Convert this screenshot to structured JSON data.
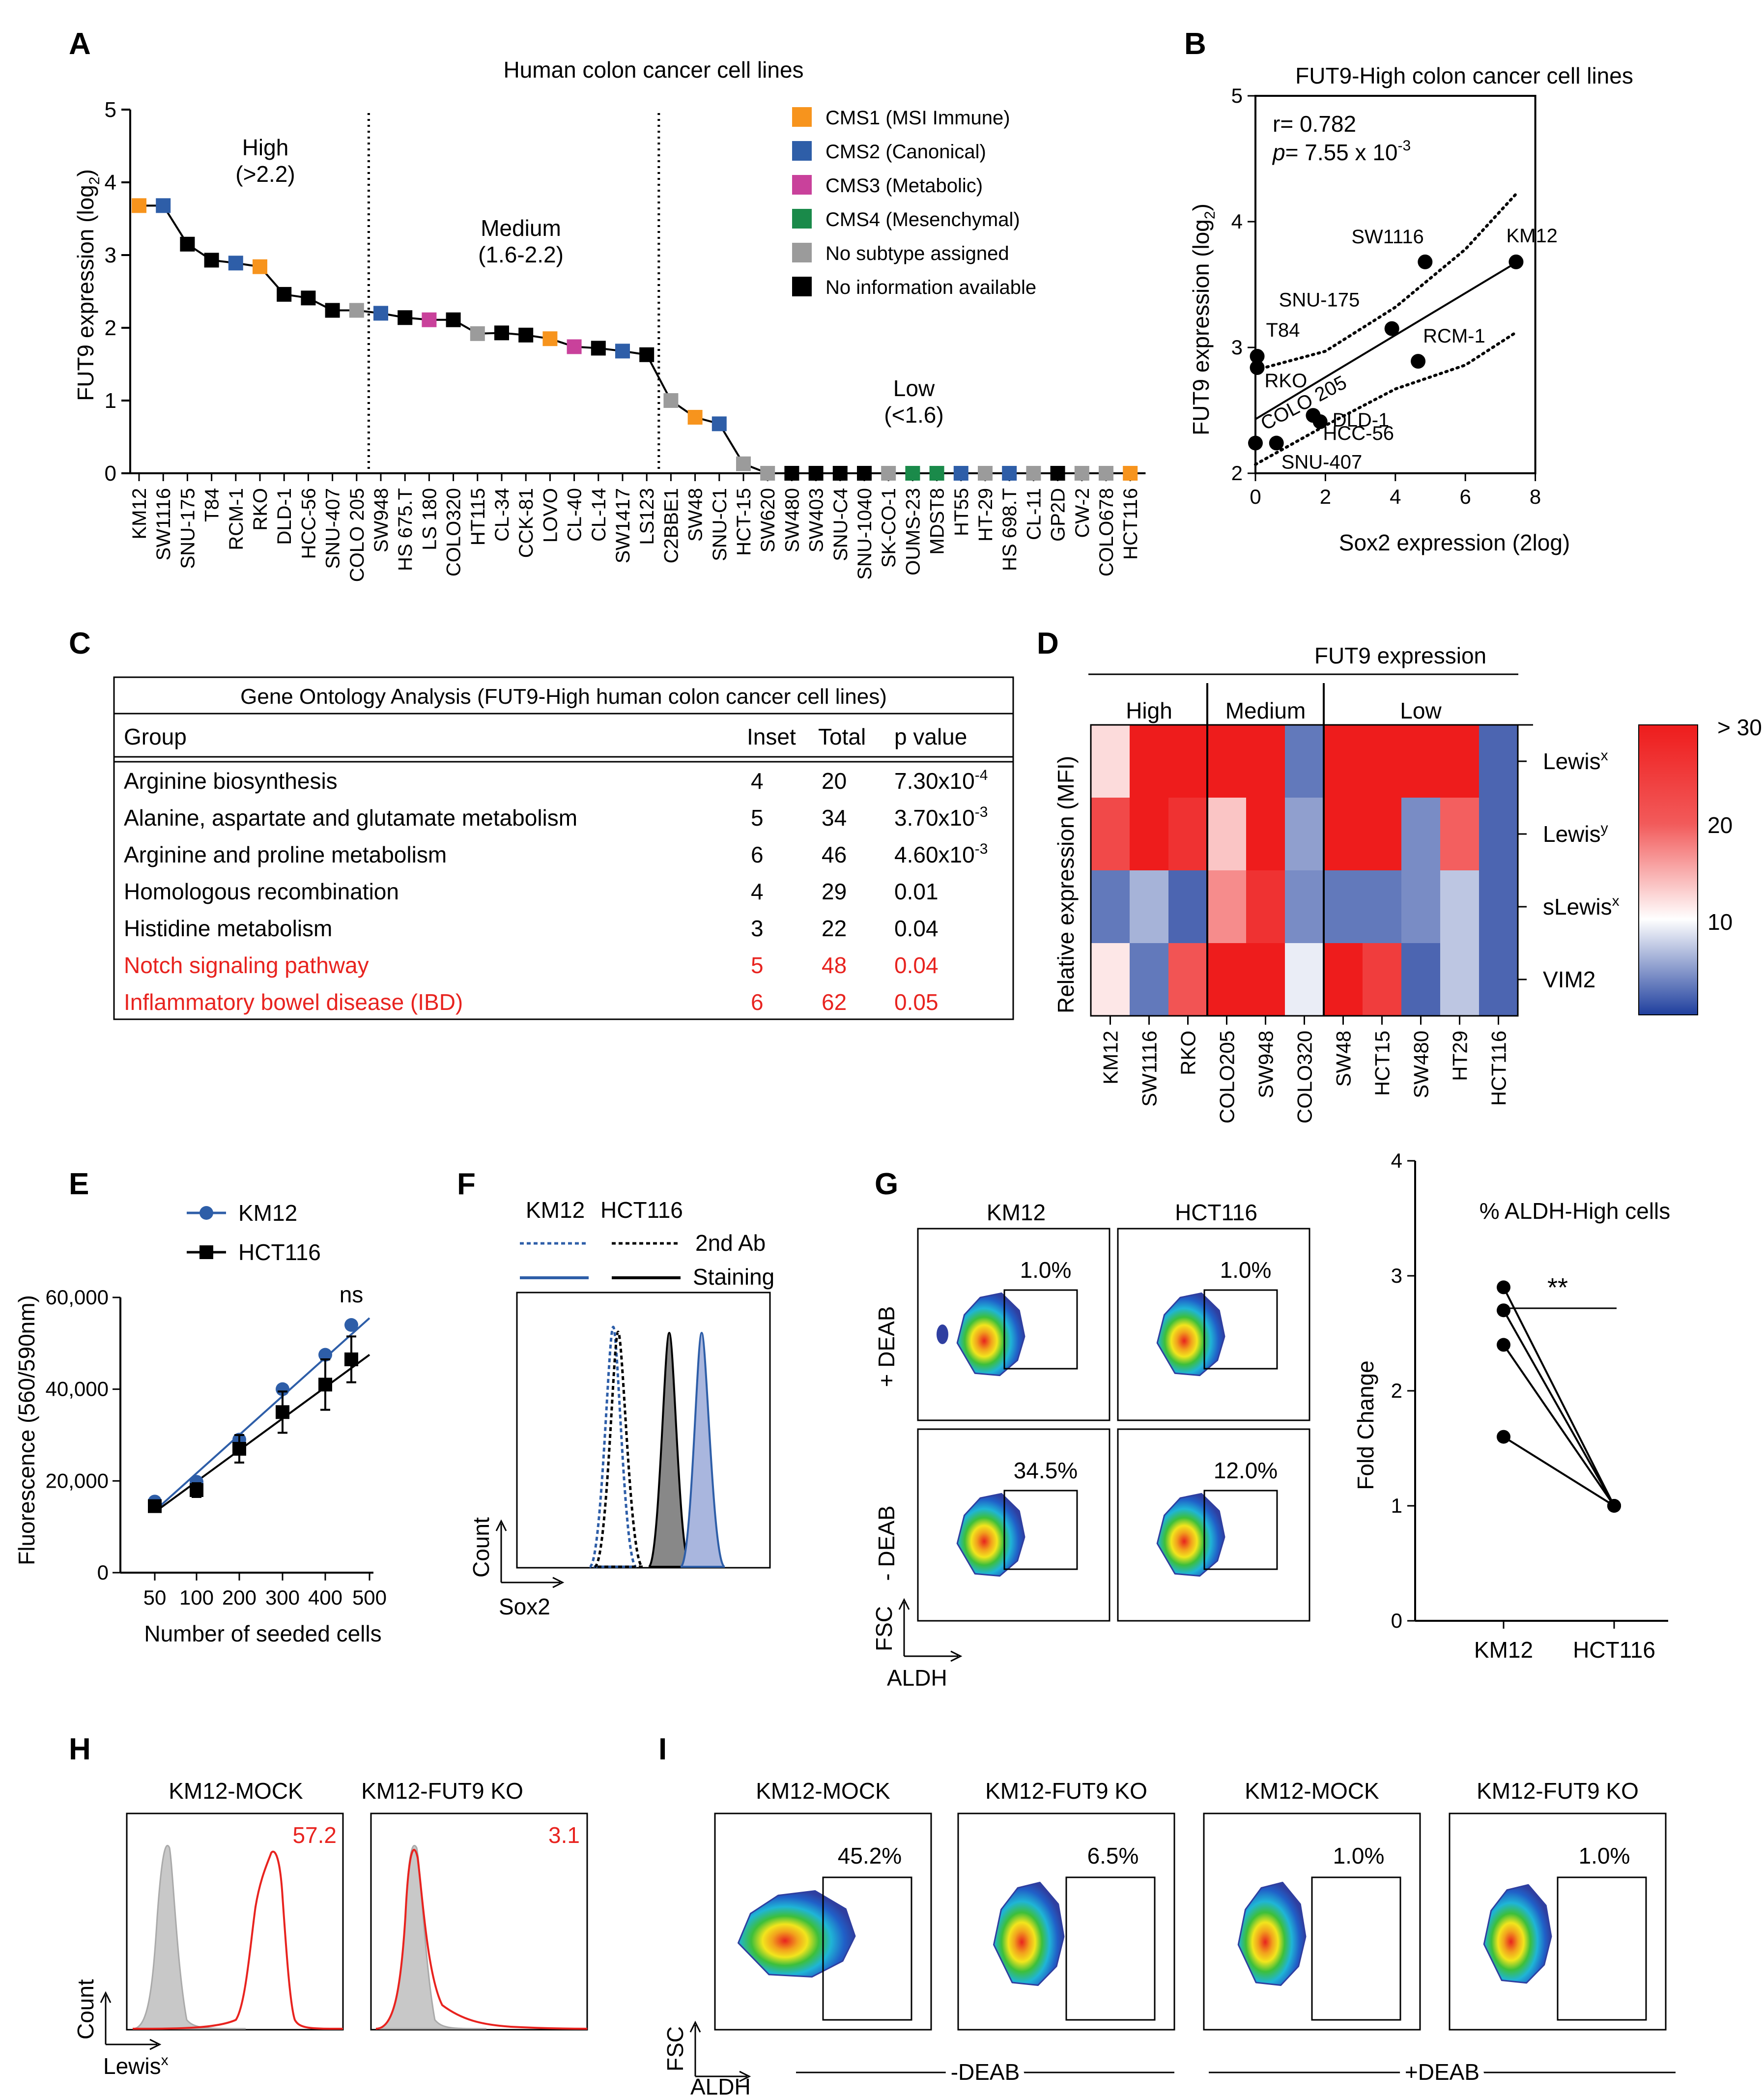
{
  "panels": {
    "A": "A",
    "B": "B",
    "C": "C",
    "D": "D",
    "E": "E",
    "F": "F",
    "G": "G",
    "H": "H",
    "I": "I"
  },
  "colors": {
    "cms1": "#f7941d",
    "cms2": "#2e5ea8",
    "cms3": "#c9419b",
    "cms4": "#1a8a4a",
    "none": "#9b9b9b",
    "info": "#000000",
    "red": "#e8231f",
    "blue": "#2e5ea8"
  },
  "chart_data": [
    {
      "id": "A",
      "type": "line",
      "title": "Human colon cancer cell lines",
      "ylabel": "FUT9 expression (log",
      "ylabel_sub": "2",
      "ylim": [
        0,
        5
      ],
      "yticks": [
        "0",
        "1",
        "2",
        "3",
        "4",
        "5"
      ],
      "groups": [
        {
          "name": "High",
          "range": "(>2.2)"
        },
        {
          "name": "Medium",
          "range": "(1.6-2.2)"
        },
        {
          "name": "Low",
          "range": "(<1.6)"
        }
      ],
      "legend": [
        {
          "label": "CMS1 (MSI Immune)",
          "key": "cms1"
        },
        {
          "label": "CMS2 (Canonical)",
          "key": "cms2"
        },
        {
          "label": "CMS3 (Metabolic)",
          "key": "cms3"
        },
        {
          "label": "CMS4 (Mesenchymal)",
          "key": "cms4"
        },
        {
          "label": "No subtype assigned",
          "key": "none"
        },
        {
          "label": "No information available",
          "key": "info"
        }
      ],
      "categories": [
        "KM12",
        "SW1116",
        "SNU-175",
        "T84",
        "RCM-1",
        "RKO",
        "DLD-1",
        "HCC-56",
        "SNU-407",
        "COLO 205",
        "SW948",
        "HS 675.T",
        "LS 180",
        "COLO320",
        "HT115",
        "CL-34",
        "CCK-81",
        "LOVO",
        "CL-40",
        "CL-14",
        "SW1417",
        "LS123",
        "C2BBE1",
        "SW48",
        "SNU-C1",
        "HCT-15",
        "SW620",
        "SW480",
        "SW403",
        "SNU-C4",
        "SNU-1040",
        "SK-CO-1",
        "OUMS-23",
        "MDST8",
        "HT55",
        "HT-29",
        "HS 698.T",
        "CL-11",
        "GP2D",
        "CW-2",
        "COLO678",
        "HCT116"
      ],
      "values": [
        3.68,
        3.68,
        3.15,
        2.93,
        2.89,
        2.84,
        2.46,
        2.41,
        2.24,
        2.24,
        2.2,
        2.14,
        2.11,
        2.11,
        1.92,
        1.93,
        1.9,
        1.85,
        1.74,
        1.72,
        1.68,
        1.63,
        1.0,
        0.77,
        0.68,
        0.13,
        0,
        0,
        0,
        0,
        0,
        0,
        0,
        0,
        0,
        0,
        0,
        0,
        0,
        0,
        0,
        0
      ],
      "subtypes": [
        "cms1",
        "cms2",
        "info",
        "info",
        "cms2",
        "cms1",
        "info",
        "info",
        "info",
        "none",
        "cms2",
        "info",
        "cms3",
        "info",
        "none",
        "info",
        "info",
        "cms1",
        "cms3",
        "info",
        "cms2",
        "info",
        "none",
        "cms1",
        "cms2",
        "none",
        "none",
        "info",
        "info",
        "info",
        "info",
        "none",
        "cms4",
        "cms4",
        "cms2",
        "none",
        "cms2",
        "none",
        "info",
        "none",
        "none",
        "cms1"
      ]
    },
    {
      "id": "B",
      "type": "scatter",
      "title": "FUT9-High colon cancer cell lines",
      "xlabel": "Sox2 expression (2log)",
      "ylabel": "FUT9 expression (log",
      "ylabel_sub": "2",
      "xlim": [
        0,
        8
      ],
      "ylim": [
        2,
        5
      ],
      "xticks": [
        "0",
        "2",
        "4",
        "6",
        "8"
      ],
      "yticks": [
        "2",
        "3",
        "4",
        "5"
      ],
      "r_text": "r= 0.782",
      "p_label": "p",
      "p_text": "= 7.55 x 10",
      "p_exp": "-3",
      "points": [
        {
          "label": "KM12",
          "x": 7.45,
          "y": 3.68
        },
        {
          "label": "SW1116",
          "x": 4.85,
          "y": 3.68
        },
        {
          "label": "SNU-175",
          "x": 3.9,
          "y": 3.15
        },
        {
          "label": "T84",
          "x": 0.05,
          "y": 2.93
        },
        {
          "label": "RCM-1",
          "x": 4.65,
          "y": 2.89
        },
        {
          "label": "RKO",
          "x": 0.05,
          "y": 2.84
        },
        {
          "label": "DLD-1",
          "x": 1.85,
          "y": 2.41
        },
        {
          "label": "HCC-56",
          "x": 1.65,
          "y": 2.46
        },
        {
          "label": "SNU-407",
          "x": 0.6,
          "y": 2.24
        },
        {
          "label": "COLO 205",
          "x": 0.0,
          "y": 2.24
        }
      ],
      "fit": {
        "intercept": 2.43,
        "slope": 0.167
      },
      "ci_upper": [
        [
          0,
          2.82
        ],
        [
          2,
          2.97
        ],
        [
          4,
          3.32
        ],
        [
          6,
          3.78
        ],
        [
          7.45,
          4.22
        ]
      ],
      "ci_lower": [
        [
          0,
          2.07
        ],
        [
          2,
          2.38
        ],
        [
          4,
          2.67
        ],
        [
          6,
          2.86
        ],
        [
          7.45,
          3.12
        ]
      ]
    },
    {
      "id": "D",
      "type": "heatmap",
      "title": "FUT9 expression",
      "ylabel": "Relative expression (MFI)",
      "groups": [
        "High",
        "Medium",
        "Low"
      ],
      "columns": [
        "KM12",
        "SW1116",
        "RKO",
        "COLO205",
        "SW948",
        "COLO320",
        "SW48",
        "HCT15",
        "SW480",
        "HT29",
        "HCT116"
      ],
      "rows": [
        {
          "name": "Lewis",
          "sup": "x",
          "values": [
            13,
            32,
            32,
            32,
            32,
            3,
            32,
            32,
            32,
            32,
            2
          ]
        },
        {
          "name": "Lewis",
          "sup": "y",
          "values": [
            26,
            32,
            28,
            15,
            32,
            5,
            32,
            32,
            4,
            24,
            2
          ]
        },
        {
          "name": "sLewis",
          "sup": "x",
          "values": [
            3,
            6,
            2,
            20,
            28,
            4,
            3,
            3,
            4,
            7,
            2
          ]
        },
        {
          "name": "VIM2",
          "sup": "",
          "values": [
            12,
            3,
            25,
            32,
            32,
            9,
            32,
            27,
            2,
            7,
            2
          ]
        }
      ],
      "scale_ticks": [
        "> 30",
        "20",
        "10"
      ],
      "scale_range": [
        0,
        30
      ]
    },
    {
      "id": "E",
      "type": "line",
      "xlabel": "Number of seeded cells",
      "ylabel": "Fluorescence (560/590nm)",
      "categories": [
        "50",
        "100",
        "200",
        "300",
        "400",
        "500"
      ],
      "yticks": [
        "0",
        "20,000",
        "40,000",
        "60,000"
      ],
      "ylim": [
        0,
        60000
      ],
      "annotation": "ns",
      "series": [
        {
          "name": "KM12",
          "x": [
            50,
            100,
            200,
            300,
            400,
            460
          ],
          "values": [
            15500,
            19800,
            29000,
            40000,
            47500,
            54000
          ],
          "err": [
            500,
            700,
            900,
            900,
            800,
            600
          ]
        },
        {
          "name": "HCT116",
          "x": [
            50,
            100,
            200,
            300,
            400,
            460
          ],
          "values": [
            14500,
            18000,
            27000,
            35000,
            41000,
            46500
          ],
          "err": [
            1200,
            1500,
            3000,
            4500,
            5500,
            5000
          ]
        }
      ]
    },
    {
      "id": "G",
      "type": "scatter",
      "title": "% ALDH-High cells",
      "ylabel": "Fold Change",
      "categories": [
        "KM12",
        "HCT116"
      ],
      "yticks": [
        "0",
        "1",
        "2",
        "3",
        "4"
      ],
      "ylim": [
        0,
        4
      ],
      "annotation": "**",
      "pairs": [
        [
          2.9,
          1.0
        ],
        [
          2.7,
          1.0
        ],
        [
          2.4,
          1.0
        ],
        [
          1.6,
          1.0
        ]
      ]
    }
  ],
  "panelC": {
    "title": "Gene Ontology Analysis (FUT9-High human colon cancer cell lines)",
    "headers": [
      "Group",
      "Inset",
      "Total",
      "p value"
    ],
    "rows": [
      {
        "group": "Arginine biosynthesis",
        "inset": "4",
        "total": "20",
        "p": "7.30x10",
        "exp": "-4",
        "red": false
      },
      {
        "group": "Alanine, aspartate and glutamate metabolism",
        "inset": "5",
        "total": "34",
        "p": "3.70x10",
        "exp": "-3",
        "red": false
      },
      {
        "group": "Arginine and proline metabolism",
        "inset": "6",
        "total": "46",
        "p": "4.60x10",
        "exp": "-3",
        "red": false
      },
      {
        "group": "Homologous recombination",
        "inset": "4",
        "total": "29",
        "p": "0.01",
        "exp": "",
        "red": false
      },
      {
        "group": "Histidine metabolism",
        "inset": "3",
        "total": "22",
        "p": "0.04",
        "exp": "",
        "red": false
      },
      {
        "group": "Notch signaling pathway",
        "inset": "5",
        "total": "48",
        "p": "0.04",
        "exp": "",
        "red": true
      },
      {
        "group": "Inflammatory bowel disease (IBD)",
        "inset": "6",
        "total": "62",
        "p": "0.05",
        "exp": "",
        "red": true
      }
    ]
  },
  "panelF": {
    "legend_cols": [
      "KM12",
      "HCT116"
    ],
    "legend_rows": [
      "2nd Ab",
      "Staining"
    ],
    "ylabel": "Count",
    "xlabel": "Sox2"
  },
  "panelG": {
    "cols": [
      "KM12",
      "HCT116"
    ],
    "rows": [
      "+ DEAB",
      "- DEAB"
    ],
    "pcts": [
      [
        "1.0%",
        "1.0%"
      ],
      [
        "34.5%",
        "12.0%"
      ]
    ],
    "ylabel": "FSC",
    "xlabel": "ALDH"
  },
  "panelH": {
    "titles": [
      "KM12-MOCK",
      "KM12-FUT9 KO"
    ],
    "values": [
      "57.2",
      "3.1"
    ],
    "ylabel": "Count",
    "xlabel": "Lewis",
    "xlabel_sup": "x"
  },
  "panelI": {
    "titles": [
      "KM12-MOCK",
      "KM12-FUT9 KO",
      "KM12-MOCK",
      "KM12-FUT9 KO"
    ],
    "pcts": [
      "45.2%",
      "6.5%",
      "1.0%",
      "1.0%"
    ],
    "groups": [
      "-DEAB",
      "+DEAB"
    ],
    "ylabel": "FSC",
    "xlabel": "ALDH"
  }
}
